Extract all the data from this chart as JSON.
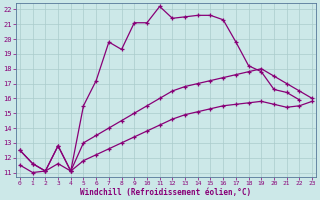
{
  "xlabel": "Windchill (Refroidissement éolien,°C)",
  "x_ticks": [
    0,
    1,
    2,
    3,
    4,
    5,
    6,
    7,
    8,
    9,
    10,
    11,
    12,
    13,
    14,
    15,
    16,
    17,
    18,
    19,
    20,
    21,
    22,
    23
  ],
  "y_ticks": [
    11,
    12,
    13,
    14,
    15,
    16,
    17,
    18,
    19,
    20,
    21,
    22
  ],
  "background_color": "#cce8e8",
  "line_color": "#880077",
  "grid_color": "#aacccc",
  "line1_x": [
    0,
    1,
    2,
    3,
    4,
    5,
    6,
    7,
    8,
    9,
    10,
    11,
    12,
    13,
    14,
    15,
    16,
    17,
    18,
    19,
    20,
    21,
    22
  ],
  "line1_y": [
    12.5,
    11.6,
    11.1,
    12.8,
    11.1,
    15.5,
    17.2,
    19.8,
    19.3,
    21.1,
    21.1,
    22.2,
    21.4,
    21.5,
    21.6,
    21.6,
    21.3,
    19.8,
    18.2,
    17.8,
    16.6,
    16.4,
    15.9
  ],
  "line2_x": [
    0,
    1,
    2,
    3,
    4,
    5,
    6,
    7,
    8,
    9,
    10,
    11,
    12,
    13,
    14,
    15,
    16,
    17,
    18,
    19,
    20,
    21,
    22,
    23
  ],
  "line2_y": [
    12.5,
    11.6,
    11.1,
    12.8,
    11.1,
    13.0,
    13.5,
    14.0,
    14.5,
    15.0,
    15.5,
    16.0,
    16.5,
    16.8,
    17.0,
    17.2,
    17.4,
    17.6,
    17.8,
    18.0,
    17.5,
    17.0,
    16.5,
    16.0
  ],
  "line3_x": [
    0,
    1,
    2,
    3,
    4,
    5,
    6,
    7,
    8,
    9,
    10,
    11,
    12,
    13,
    14,
    15,
    16,
    17,
    18,
    19,
    20,
    21,
    22,
    23
  ],
  "line3_y": [
    11.5,
    11.0,
    11.1,
    11.6,
    11.1,
    11.8,
    12.2,
    12.6,
    13.0,
    13.4,
    13.8,
    14.2,
    14.6,
    14.9,
    15.1,
    15.3,
    15.5,
    15.6,
    15.7,
    15.8,
    15.6,
    15.4,
    15.5,
    15.8
  ]
}
